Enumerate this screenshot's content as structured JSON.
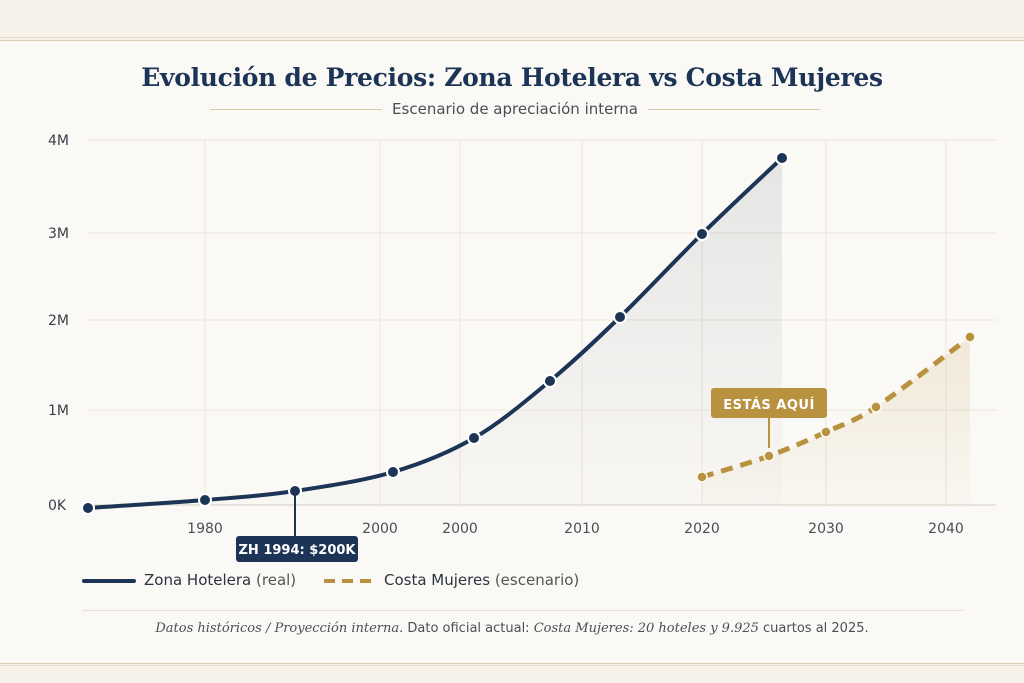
{
  "chart_data": {
    "type": "line",
    "title": "Evolución de Precios: Zona Hotelera vs Costa Mujeres",
    "subtitle": "Escenario de apreciación interna",
    "y_ticks": [
      "4M",
      "3M",
      "2M",
      "1M",
      "0K"
    ],
    "x_ticks": [
      "1980",
      "2000",
      "2000",
      "2010",
      "2020",
      "2030",
      "2040"
    ],
    "grid": true,
    "legend_position": "bottom-left",
    "series": [
      {
        "name": "Zona Hotelera (real)",
        "style": "solid",
        "color": "#1c3557",
        "points": [
          [
            1970,
            -20000
          ],
          [
            1980,
            0
          ],
          [
            1994,
            200000
          ],
          [
            2003,
            380000
          ],
          [
            2008,
            720000
          ],
          [
            2014,
            1350000
          ],
          [
            2019,
            2050000
          ],
          [
            2026,
            3000000
          ],
          [
            2032,
            3850000
          ]
        ]
      },
      {
        "name": "Costa Mujeres (escenario)",
        "style": "dashed",
        "color": "#b8923e",
        "points": [
          [
            2020,
            280000
          ],
          [
            2025,
            520000
          ],
          [
            2030,
            780000
          ],
          [
            2034,
            1050000
          ],
          [
            2042,
            1850000
          ]
        ]
      }
    ],
    "annotations": [
      {
        "text": "ZH 1994: $200K",
        "x": 1994,
        "y": 200000,
        "series": 0
      },
      {
        "text": "ESTÁS AQUÍ",
        "x": 2025,
        "y": 520000,
        "series": 1
      }
    ]
  },
  "legend": {
    "item1_name": "Zona Hotelera",
    "item1_suffix": "(real)",
    "item2_name": "Costa Mujeres",
    "item2_suffix": "(escenario)"
  },
  "footnote": {
    "part1": "Datos históricos / Proyección interna.",
    "part2": " Dato oficial actual: ",
    "part3": "Costa Mujeres: 20 hoteles y 9.925",
    "part4": " cuartos al 2025."
  },
  "colors": {
    "navy": "#1c3557",
    "gold": "#b8923e",
    "background": "#fbf9f5"
  }
}
